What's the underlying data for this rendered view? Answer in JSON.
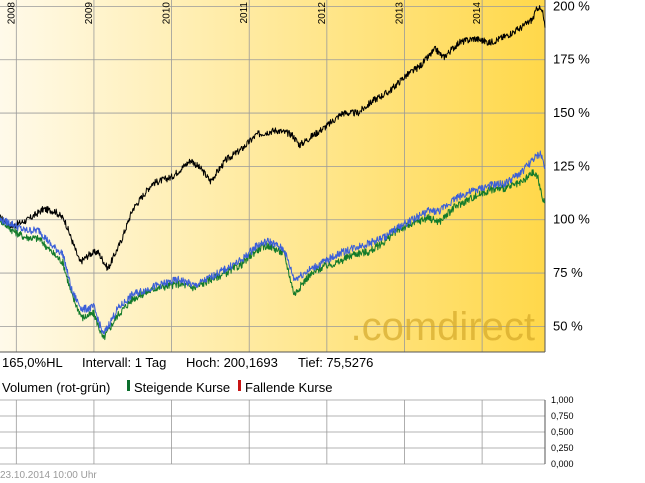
{
  "colors": {
    "gradient_start": "#fffaea",
    "gradient_end": "#ffd84a",
    "main_line": "#000000",
    "blue_line": "#3c5fd8",
    "green_line": "#127a2a",
    "rising": "#0a6e2c",
    "falling": "#c81414",
    "grid": "#9a9a9a",
    "watermark": "#d2a525"
  },
  "watermark": ".comdirect",
  "info": {
    "perf": "165,0%HL",
    "interval": "Intervall: 1 Tag",
    "high": "Hoch: 200,1693",
    "low": "Tief: 75,5276"
  },
  "volume_legend": {
    "title": "Volumen (rot-grün)",
    "rising": "Steigende Kurse",
    "falling": "Fallende Kurse"
  },
  "footer": "23.10.2014 10:00 Uhr",
  "chart_data": [
    {
      "type": "line",
      "x_ticks": [
        "2008",
        "2009",
        "2010",
        "2011",
        "2012",
        "2013",
        "2014"
      ],
      "y_ticks": [
        "50 %",
        "75 %",
        "100 %",
        "125 %",
        "150 %",
        "175 %",
        "200 %"
      ],
      "ylim": [
        38,
        203
      ],
      "xlim": [
        2007.79,
        2014.81
      ],
      "grid": true,
      "series": [
        {
          "color": "main_line",
          "points": [
            [
              2007.79,
              101
            ],
            [
              2007.95,
              97
            ],
            [
              2008.15,
              100
            ],
            [
              2008.35,
              105
            ],
            [
              2008.5,
              104
            ],
            [
              2008.62,
              100
            ],
            [
              2008.72,
              90
            ],
            [
              2008.82,
              80
            ],
            [
              2008.95,
              84
            ],
            [
              2009.05,
              85
            ],
            [
              2009.18,
              77
            ],
            [
              2009.35,
              90
            ],
            [
              2009.5,
              105
            ],
            [
              2009.75,
              117
            ],
            [
              2010.0,
              120
            ],
            [
              2010.25,
              128
            ],
            [
              2010.4,
              123
            ],
            [
              2010.5,
              118
            ],
            [
              2010.7,
              128
            ],
            [
              2010.9,
              133
            ],
            [
              2011.1,
              140
            ],
            [
              2011.35,
              142
            ],
            [
              2011.55,
              140
            ],
            [
              2011.65,
              135
            ],
            [
              2011.8,
              139
            ],
            [
              2012.0,
              144
            ],
            [
              2012.2,
              150
            ],
            [
              2012.4,
              150
            ],
            [
              2012.6,
              156
            ],
            [
              2012.8,
              160
            ],
            [
              2013.0,
              167
            ],
            [
              2013.2,
              172
            ],
            [
              2013.4,
              180
            ],
            [
              2013.5,
              176
            ],
            [
              2013.7,
              183
            ],
            [
              2013.9,
              185
            ],
            [
              2014.1,
              183
            ],
            [
              2014.3,
              186
            ],
            [
              2014.5,
              190
            ],
            [
              2014.65,
              194
            ],
            [
              2014.72,
              200
            ],
            [
              2014.78,
              197
            ],
            [
              2014.81,
              190
            ]
          ]
        },
        {
          "color": "blue_line",
          "points": [
            [
              2007.79,
              100
            ],
            [
              2007.95,
              98
            ],
            [
              2008.1,
              95
            ],
            [
              2008.3,
              95
            ],
            [
              2008.45,
              88
            ],
            [
              2008.6,
              84
            ],
            [
              2008.72,
              66
            ],
            [
              2008.85,
              58
            ],
            [
              2009.0,
              59
            ],
            [
              2009.12,
              46
            ],
            [
              2009.3,
              58
            ],
            [
              2009.5,
              65
            ],
            [
              2009.8,
              69
            ],
            [
              2010.1,
              72
            ],
            [
              2010.3,
              69
            ],
            [
              2010.5,
              73
            ],
            [
              2010.7,
              77
            ],
            [
              2010.9,
              81
            ],
            [
              2011.1,
              88
            ],
            [
              2011.25,
              90
            ],
            [
              2011.45,
              86
            ],
            [
              2011.58,
              72
            ],
            [
              2011.75,
              76
            ],
            [
              2011.95,
              80
            ],
            [
              2012.15,
              84
            ],
            [
              2012.35,
              87
            ],
            [
              2012.55,
              89
            ],
            [
              2012.75,
              92
            ],
            [
              2012.9,
              96
            ],
            [
              2013.1,
              100
            ],
            [
              2013.3,
              104
            ],
            [
              2013.45,
              104
            ],
            [
              2013.65,
              110
            ],
            [
              2013.85,
              113
            ],
            [
              2014.1,
              116
            ],
            [
              2014.3,
              117
            ],
            [
              2014.5,
              122
            ],
            [
              2014.65,
              128
            ],
            [
              2014.75,
              131
            ],
            [
              2014.81,
              125
            ]
          ]
        },
        {
          "color": "green_line",
          "points": [
            [
              2007.79,
              100
            ],
            [
              2007.95,
              95
            ],
            [
              2008.1,
              92
            ],
            [
              2008.3,
              91
            ],
            [
              2008.45,
              85
            ],
            [
              2008.6,
              80
            ],
            [
              2008.72,
              64
            ],
            [
              2008.85,
              54
            ],
            [
              2009.0,
              56
            ],
            [
              2009.12,
              44
            ],
            [
              2009.3,
              55
            ],
            [
              2009.5,
              63
            ],
            [
              2009.8,
              68
            ],
            [
              2010.1,
              70
            ],
            [
              2010.3,
              68
            ],
            [
              2010.5,
              72
            ],
            [
              2010.7,
              75
            ],
            [
              2010.9,
              79
            ],
            [
              2011.1,
              86
            ],
            [
              2011.25,
              88
            ],
            [
              2011.45,
              84
            ],
            [
              2011.58,
              65
            ],
            [
              2011.75,
              73
            ],
            [
              2011.95,
              78
            ],
            [
              2012.15,
              80
            ],
            [
              2012.35,
              84
            ],
            [
              2012.55,
              85
            ],
            [
              2012.75,
              90
            ],
            [
              2012.9,
              95
            ],
            [
              2013.1,
              98
            ],
            [
              2013.3,
              101
            ],
            [
              2013.45,
              99
            ],
            [
              2013.65,
              106
            ],
            [
              2013.85,
              110
            ],
            [
              2014.1,
              114
            ],
            [
              2014.3,
              115
            ],
            [
              2014.5,
              117
            ],
            [
              2014.65,
              122
            ],
            [
              2014.72,
              120
            ],
            [
              2014.76,
              112
            ],
            [
              2014.81,
              108
            ]
          ]
        }
      ]
    },
    {
      "type": "bar",
      "y_ticks": [
        "1,000",
        "0,750",
        "0,500",
        "0,250",
        "0,000"
      ],
      "ylim": [
        0,
        1
      ],
      "grid": true,
      "values": []
    }
  ]
}
